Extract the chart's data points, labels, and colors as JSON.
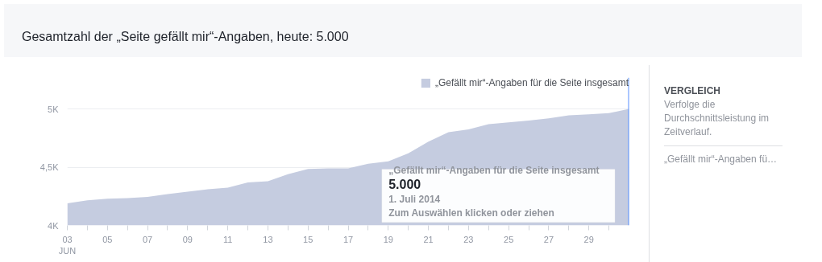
{
  "chart_data": {
    "type": "area",
    "title": "Gesamtzahl der „Seite gefällt mir“-Angaben, heute: 5.000",
    "x": [
      "2014-06-03",
      "2014-06-04",
      "2014-06-05",
      "2014-06-06",
      "2014-06-07",
      "2014-06-08",
      "2014-06-09",
      "2014-06-10",
      "2014-06-11",
      "2014-06-12",
      "2014-06-13",
      "2014-06-14",
      "2014-06-15",
      "2014-06-16",
      "2014-06-17",
      "2014-06-18",
      "2014-06-19",
      "2014-06-20",
      "2014-06-21",
      "2014-06-22",
      "2014-06-23",
      "2014-06-24",
      "2014-06-25",
      "2014-06-26",
      "2014-06-27",
      "2014-06-28",
      "2014-06-29",
      "2014-06-30",
      "2014-07-01"
    ],
    "series": [
      {
        "name": "„Gefällt mir“-Angaben für die Seite insgesamt",
        "color": "#c5cce0",
        "values": [
          4190,
          4215,
          4230,
          4235,
          4245,
          4270,
          4290,
          4310,
          4325,
          4370,
          4380,
          4440,
          4485,
          4490,
          4490,
          4530,
          4550,
          4620,
          4720,
          4800,
          4825,
          4870,
          4885,
          4900,
          4920,
          4945,
          4955,
          4965,
          5000
        ]
      }
    ],
    "xlim": [
      "2014-06-03",
      "2014-07-01"
    ],
    "ylim": [
      4000,
      5270
    ],
    "xticks": [
      {
        "value": "2014-06-03",
        "label": "03\nJUN"
      },
      {
        "value": "2014-06-04",
        "label": null
      },
      {
        "value": "2014-06-05",
        "label": "05"
      },
      {
        "value": "2014-06-06",
        "label": null
      },
      {
        "value": "2014-06-07",
        "label": "07"
      },
      {
        "value": "2014-06-08",
        "label": null
      },
      {
        "value": "2014-06-09",
        "label": "09"
      },
      {
        "value": "2014-06-10",
        "label": null
      },
      {
        "value": "2014-06-11",
        "label": "11"
      },
      {
        "value": "2014-06-12",
        "label": null
      },
      {
        "value": "2014-06-13",
        "label": "13"
      },
      {
        "value": "2014-06-14",
        "label": null
      },
      {
        "value": "2014-06-15",
        "label": "15"
      },
      {
        "value": "2014-06-16",
        "label": null
      },
      {
        "value": "2014-06-17",
        "label": "17"
      },
      {
        "value": "2014-06-18",
        "label": null
      },
      {
        "value": "2014-06-19",
        "label": "19"
      },
      {
        "value": "2014-06-20",
        "label": null
      },
      {
        "value": "2014-06-21",
        "label": "21"
      },
      {
        "value": "2014-06-22",
        "label": null
      },
      {
        "value": "2014-06-23",
        "label": "23"
      },
      {
        "value": "2014-06-24",
        "label": null
      },
      {
        "value": "2014-06-25",
        "label": "25"
      },
      {
        "value": "2014-06-26",
        "label": null
      },
      {
        "value": "2014-06-27",
        "label": "27"
      },
      {
        "value": "2014-06-28",
        "label": null
      },
      {
        "value": "2014-06-29",
        "label": "29"
      },
      {
        "value": "2014-06-30",
        "label": null
      }
    ],
    "yticks": [
      {
        "value": 4000,
        "label": "4K"
      },
      {
        "value": 4500,
        "label": "4,5K"
      },
      {
        "value": 5000,
        "label": "5K"
      }
    ],
    "grid": "y",
    "legend": "top right",
    "ref_lines": [
      {
        "axis": "x",
        "value": "2014-07-01",
        "label": null,
        "color": "#5890ff"
      }
    ],
    "annotations": [
      "„Gefällt mir“-Angaben für die Seite insgesamt",
      "5.000",
      "1. Juli 2014",
      "Zum Auswählen klicken oder ziehen",
      "VERGLEICH",
      "Verfolge die Durchschnittsleistung im Zeitverlauf.",
      "„Gefällt mir“-Angaben fü…"
    ]
  }
}
